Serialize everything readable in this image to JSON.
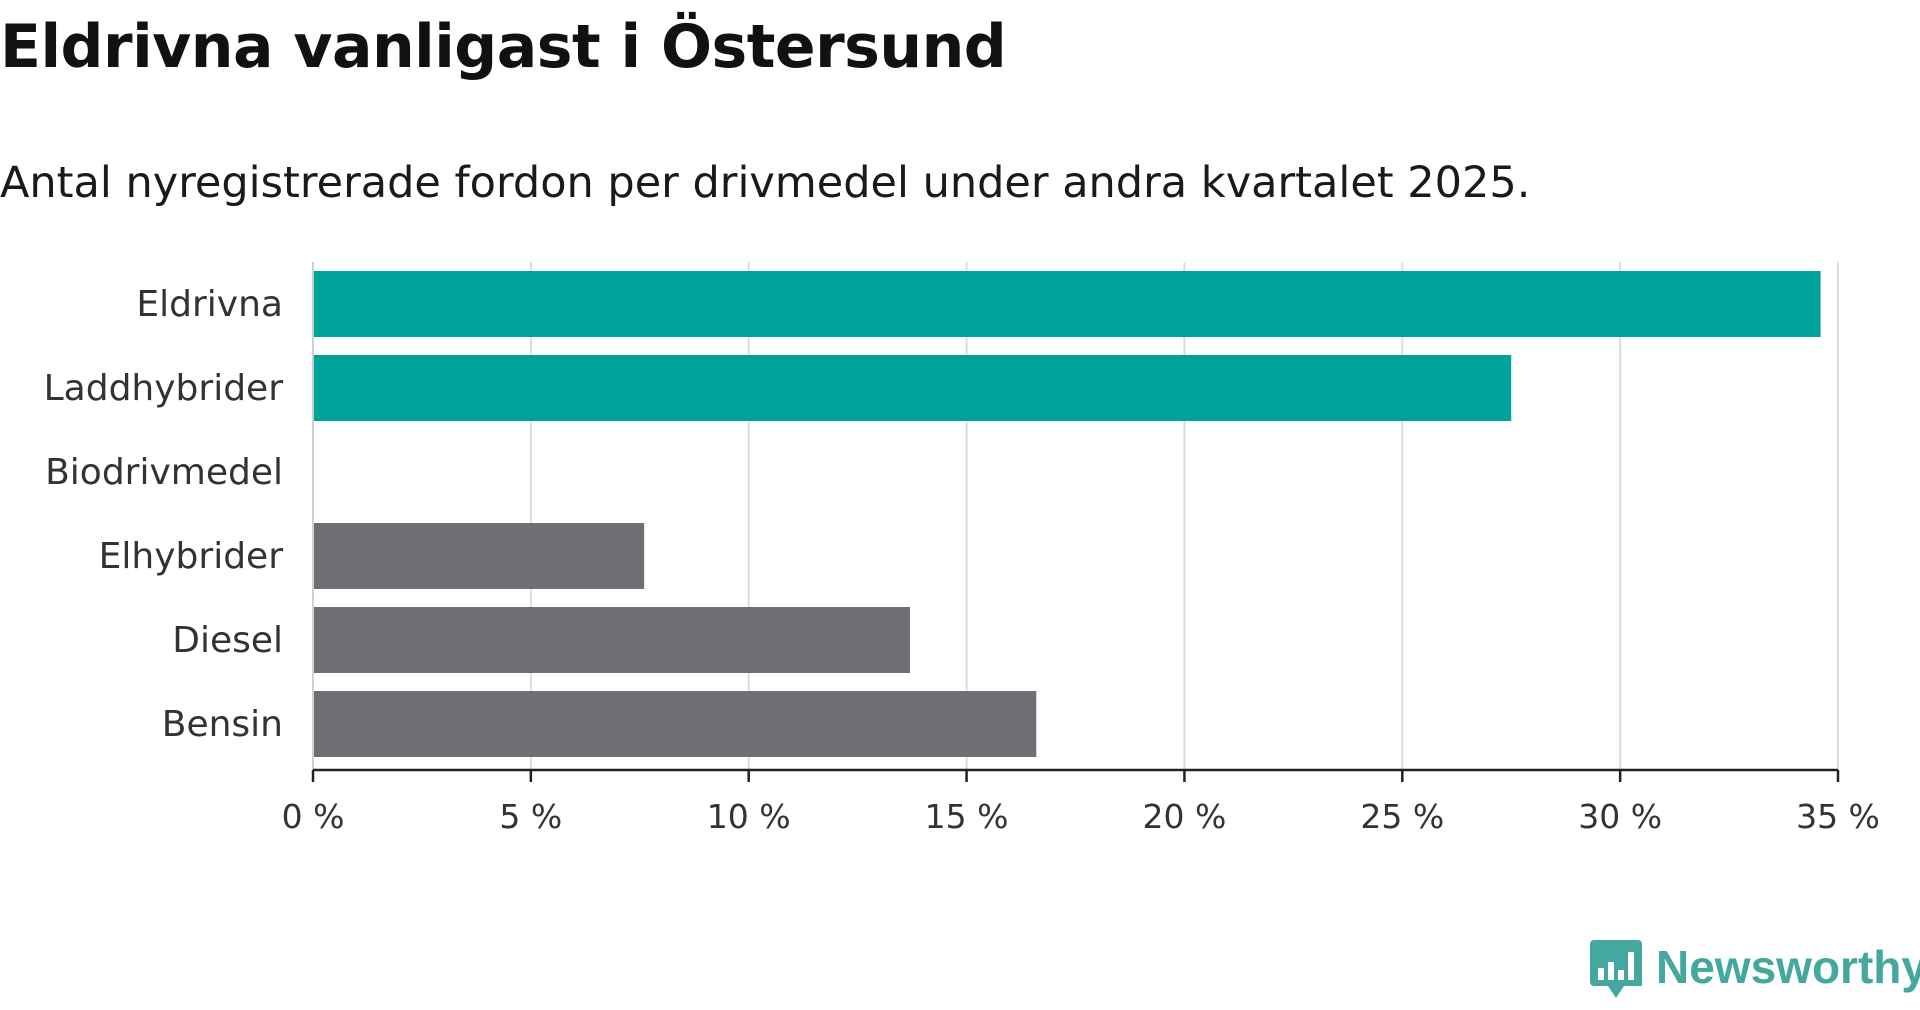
{
  "title": "Eldrivna vanligast i Östersund",
  "subtitle": "Antal nyregistrerade fordon per drivmedel under andra kvartalet 2025.",
  "brand": {
    "name": "Newsworthy",
    "color": "#44a89f"
  },
  "colors": {
    "highlight": "#00a39a",
    "default": "#6e6e75",
    "grid": "#dddddd",
    "axis": "#222222"
  },
  "chart_data": {
    "type": "bar",
    "orientation": "horizontal",
    "categories": [
      "Eldrivna",
      "Laddhybrider",
      "Biodrivmedel",
      "Elhybrider",
      "Diesel",
      "Bensin"
    ],
    "values": [
      34.6,
      27.5,
      0,
      7.6,
      13.7,
      16.6
    ],
    "highlighted": [
      true,
      true,
      false,
      false,
      false,
      false
    ],
    "xlim": [
      0,
      35
    ],
    "xticks": [
      0,
      5,
      10,
      15,
      20,
      25,
      30,
      35
    ],
    "xtick_labels": [
      "0 %",
      "5 %",
      "10 %",
      "15 %",
      "20 %",
      "25 %",
      "30 %",
      "35 %"
    ],
    "unit": "%",
    "grid": true,
    "legend": "none"
  }
}
